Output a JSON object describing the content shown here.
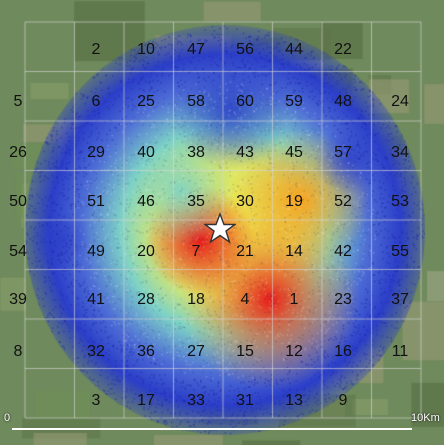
{
  "map": {
    "cells": [
      [
        null,
        "2",
        "10",
        "47",
        "56",
        "44",
        "22",
        null
      ],
      [
        "5",
        "6",
        "25",
        "58",
        "60",
        "59",
        "48",
        "24"
      ],
      [
        "26",
        "29",
        "40",
        "38",
        "43",
        "45",
        "57",
        "34"
      ],
      [
        "50",
        "51",
        "46",
        "35",
        "30",
        "19",
        "52",
        "53"
      ],
      [
        "54",
        "49",
        "20",
        "7",
        "21",
        "14",
        "42",
        "55"
      ],
      [
        "39",
        "41",
        "28",
        "18",
        "4",
        "1",
        "23",
        "37"
      ],
      [
        "8",
        "32",
        "36",
        "27",
        "15",
        "12",
        "16",
        "11"
      ],
      [
        null,
        "3",
        "17",
        "33",
        "31",
        "13",
        "9",
        null
      ]
    ],
    "scale": {
      "start_label": "0",
      "end_label": "10Km"
    },
    "marker_icon": "star-icon",
    "colors": {
      "high": "#e8231d",
      "mid_high": "#f5a623",
      "mid": "#f2e94a",
      "mid_low": "#7ed3c6",
      "low": "#2b3ec9",
      "background": "#6f8a5c",
      "grid": "#d8d8d8"
    }
  }
}
